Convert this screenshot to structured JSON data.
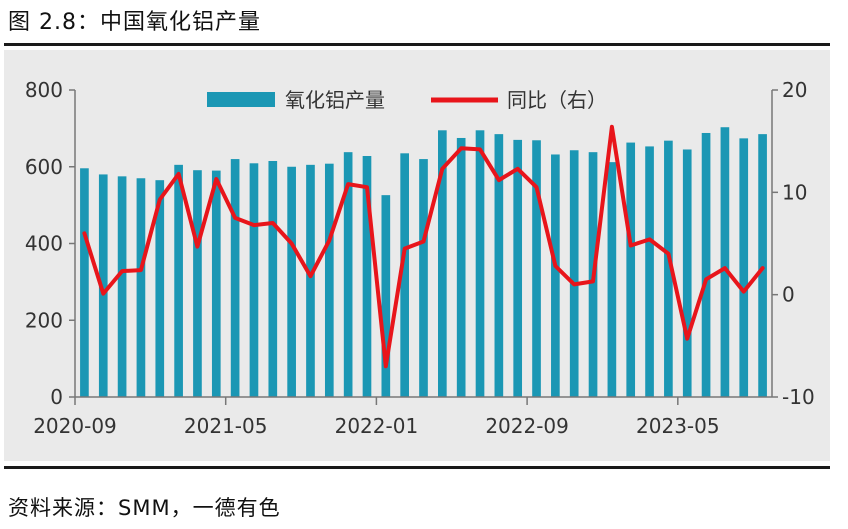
{
  "figure_title": "图 2.8：中国氧化铝产量",
  "source": "资料来源：SMM，一德有色",
  "colors": {
    "bar": "#1b97b4",
    "line": "#e8151b",
    "axis": "#777777",
    "text": "#333333"
  },
  "chart_data": {
    "type": "bar+line",
    "title": "中国氧化铝产量",
    "x_tick_labels": [
      "2020-09",
      "2021-05",
      "2022-01",
      "2022-09",
      "2023-05"
    ],
    "x_tick_index": [
      0,
      8,
      16,
      24,
      32
    ],
    "categories": [
      "2020-09",
      "2020-10",
      "2020-11",
      "2020-12",
      "2021-01",
      "2021-02",
      "2021-03",
      "2021-04",
      "2021-05",
      "2021-06",
      "2021-07",
      "2021-08",
      "2021-09",
      "2021-10",
      "2021-11",
      "2021-12",
      "2022-01",
      "2022-02",
      "2022-03",
      "2022-04",
      "2022-05",
      "2022-06",
      "2022-07",
      "2022-08",
      "2022-09",
      "2022-10",
      "2022-11",
      "2022-12",
      "2023-01",
      "2023-02",
      "2023-03",
      "2023-04",
      "2023-05",
      "2023-06",
      "2023-07",
      "2023-08",
      "2023-09"
    ],
    "left_axis": {
      "ylim": [
        0,
        800
      ],
      "ticks": [
        0,
        200,
        400,
        600,
        800
      ]
    },
    "right_axis": {
      "ylim": [
        -10,
        20
      ],
      "ticks": [
        -10,
        0,
        10,
        20
      ]
    },
    "series": [
      {
        "name": "氧化铝产量",
        "type": "bar",
        "axis": "left",
        "values": [
          596,
          580,
          575,
          570,
          565,
          605,
          591,
          590,
          620,
          609,
          615,
          600,
          605,
          608,
          638,
          628,
          526,
          635,
          620,
          695,
          675,
          695,
          685,
          670,
          669,
          632,
          643,
          638,
          612,
          663,
          653,
          668,
          645,
          688,
          703,
          674,
          685
        ]
      },
      {
        "name": "同比（右）",
        "type": "line",
        "axis": "right",
        "values": [
          6.0,
          0.1,
          2.3,
          2.4,
          9.3,
          11.8,
          4.7,
          11.3,
          7.5,
          6.8,
          7.0,
          5.0,
          1.8,
          5.3,
          10.8,
          10.5,
          -7.0,
          4.5,
          5.2,
          12.3,
          14.3,
          14.2,
          11.2,
          12.3,
          10.5,
          2.8,
          1.0,
          1.3,
          16.4,
          4.8,
          5.4,
          4.0,
          -4.3,
          1.5,
          2.6,
          0.3,
          2.6
        ]
      }
    ]
  }
}
